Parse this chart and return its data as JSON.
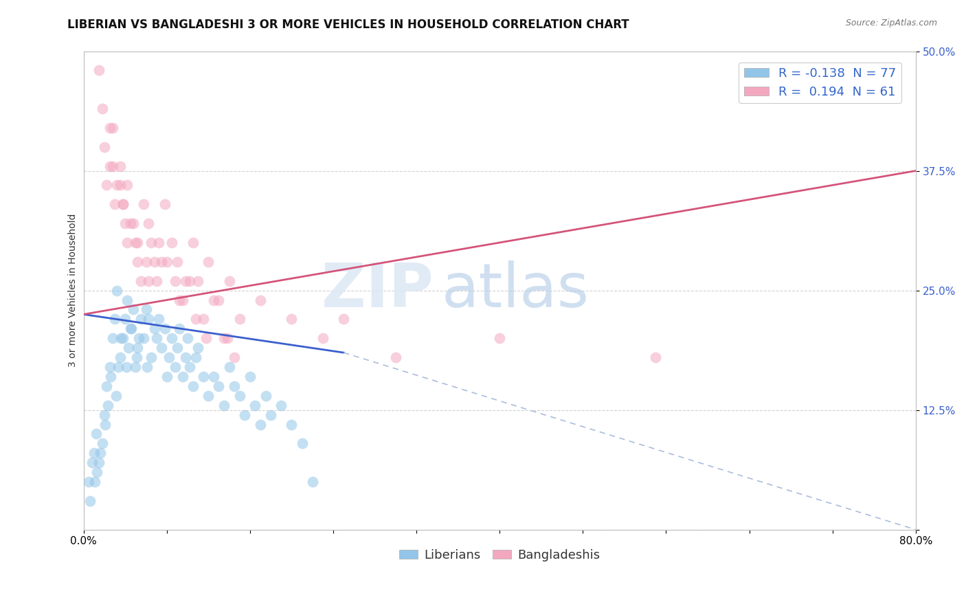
{
  "title": "LIBERIAN VS BANGLADESHI 3 OR MORE VEHICLES IN HOUSEHOLD CORRELATION CHART",
  "source_text": "Source: ZipAtlas.com",
  "ylabel": "3 or more Vehicles in Household",
  "xlim": [
    0.0,
    80.0
  ],
  "ylim": [
    0.0,
    50.0
  ],
  "ytick_positions": [
    0.0,
    12.5,
    25.0,
    37.5,
    50.0
  ],
  "ytick_labels": [
    "",
    "12.5%",
    "25.0%",
    "37.5%",
    "50.0%"
  ],
  "xtick_positions": [
    0,
    8,
    16,
    24,
    32,
    40,
    48,
    56,
    64,
    72,
    80
  ],
  "xtick_labels": [
    "0.0%",
    "",
    "",
    "",
    "",
    "",
    "",
    "",
    "",
    "",
    "80.0%"
  ],
  "liberian_color": "#93c5e8",
  "bangladeshi_color": "#f4a8c0",
  "liberian_R": -0.138,
  "liberian_N": 77,
  "bangladeshi_R": 0.194,
  "bangladeshi_N": 61,
  "watermark_zip": "ZIP",
  "watermark_atlas": "atlas",
  "title_fontsize": 12,
  "axis_label_fontsize": 10,
  "tick_fontsize": 11,
  "legend_fontsize": 13,
  "trend_liberian_color": "#3a5fcd",
  "trend_bangladeshi_color": "#d4547a",
  "trend_liberian_dashed_color": "#aabcdd",
  "grid_color": "#cccccc",
  "background_color": "#ffffff",
  "lib_trend_x0": 0.0,
  "lib_trend_y0": 22.5,
  "lib_trend_x1": 25.0,
  "lib_trend_y1": 18.5,
  "lib_trend_dash_x0": 25.0,
  "lib_trend_dash_y0": 18.5,
  "lib_trend_dash_x1": 80.0,
  "lib_trend_dash_y1": 0.0,
  "ban_trend_x0": 0.0,
  "ban_trend_y0": 22.5,
  "ban_trend_x1": 80.0,
  "ban_trend_y1": 37.5,
  "liberian_x": [
    0.5,
    0.8,
    1.0,
    1.2,
    1.5,
    1.8,
    2.0,
    2.2,
    2.5,
    2.8,
    3.0,
    3.2,
    3.5,
    3.8,
    4.0,
    4.2,
    4.5,
    4.8,
    5.0,
    5.2,
    5.5,
    5.8,
    6.0,
    6.2,
    6.5,
    6.8,
    7.0,
    7.2,
    7.5,
    7.8,
    8.0,
    8.2,
    8.5,
    8.8,
    9.0,
    9.2,
    9.5,
    9.8,
    10.0,
    10.2,
    10.5,
    10.8,
    11.0,
    11.5,
    12.0,
    12.5,
    13.0,
    13.5,
    14.0,
    14.5,
    15.0,
    15.5,
    16.0,
    16.5,
    17.0,
    17.5,
    18.0,
    19.0,
    20.0,
    21.0,
    22.0,
    0.6,
    1.1,
    1.3,
    1.6,
    2.1,
    2.3,
    2.6,
    3.1,
    3.3,
    3.6,
    4.1,
    4.3,
    4.6,
    5.1,
    5.3,
    6.1
  ],
  "liberian_y": [
    5.0,
    7.0,
    8.0,
    10.0,
    7.0,
    9.0,
    12.0,
    15.0,
    17.0,
    20.0,
    22.0,
    25.0,
    18.0,
    20.0,
    22.0,
    24.0,
    21.0,
    23.0,
    17.0,
    19.0,
    22.0,
    20.0,
    23.0,
    22.0,
    18.0,
    21.0,
    20.0,
    22.0,
    19.0,
    21.0,
    16.0,
    18.0,
    20.0,
    17.0,
    19.0,
    21.0,
    16.0,
    18.0,
    20.0,
    17.0,
    15.0,
    18.0,
    19.0,
    16.0,
    14.0,
    16.0,
    15.0,
    13.0,
    17.0,
    15.0,
    14.0,
    12.0,
    16.0,
    13.0,
    11.0,
    14.0,
    12.0,
    13.0,
    11.0,
    9.0,
    5.0,
    3.0,
    5.0,
    6.0,
    8.0,
    11.0,
    13.0,
    16.0,
    14.0,
    17.0,
    20.0,
    17.0,
    19.0,
    21.0,
    18.0,
    20.0,
    17.0
  ],
  "bangladeshi_x": [
    1.5,
    2.0,
    2.5,
    2.8,
    3.2,
    3.5,
    3.8,
    4.2,
    4.8,
    5.2,
    5.8,
    6.2,
    6.8,
    7.2,
    7.8,
    8.5,
    9.0,
    9.8,
    10.5,
    11.0,
    12.0,
    13.0,
    14.0,
    15.0,
    17.0,
    20.0,
    23.0,
    25.0,
    30.0,
    40.0,
    55.0,
    2.2,
    3.0,
    4.0,
    5.0,
    6.0,
    7.0,
    8.0,
    9.5,
    10.2,
    11.5,
    12.5,
    13.5,
    2.5,
    3.5,
    4.5,
    5.5,
    6.5,
    7.5,
    8.8,
    9.2,
    10.8,
    11.8,
    13.8,
    14.5,
    1.8,
    2.8,
    3.8,
    4.2,
    5.2,
    6.2
  ],
  "bangladeshi_y": [
    48.0,
    40.0,
    38.0,
    42.0,
    36.0,
    38.0,
    34.0,
    36.0,
    32.0,
    30.0,
    34.0,
    32.0,
    28.0,
    30.0,
    34.0,
    30.0,
    28.0,
    26.0,
    30.0,
    26.0,
    28.0,
    24.0,
    26.0,
    22.0,
    24.0,
    22.0,
    20.0,
    22.0,
    18.0,
    20.0,
    18.0,
    36.0,
    34.0,
    32.0,
    30.0,
    28.0,
    26.0,
    28.0,
    24.0,
    26.0,
    22.0,
    24.0,
    20.0,
    42.0,
    36.0,
    32.0,
    26.0,
    30.0,
    28.0,
    26.0,
    24.0,
    22.0,
    20.0,
    20.0,
    18.0,
    44.0,
    38.0,
    34.0,
    30.0,
    28.0,
    26.0
  ]
}
